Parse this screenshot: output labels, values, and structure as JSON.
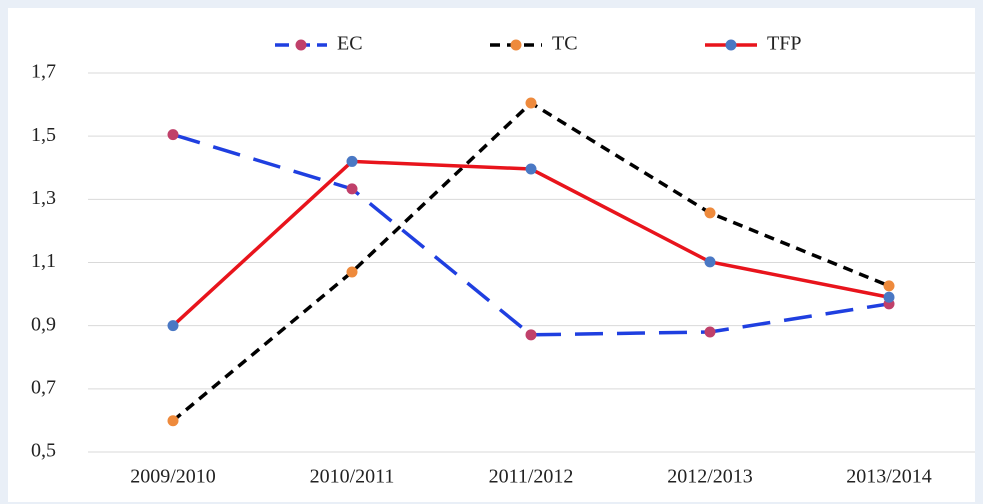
{
  "chart_data": {
    "type": "line",
    "categories": [
      "2009/2010",
      "2010/2011",
      "2011/2012",
      "2012/2013",
      "2013/2014"
    ],
    "series": [
      {
        "name": "EC",
        "color": "#1f3fe0",
        "marker_color": "#c0406a",
        "dash": "long",
        "values": [
          1.505,
          1.333,
          0.871,
          0.88,
          0.969
        ]
      },
      {
        "name": "TC",
        "color": "#000000",
        "marker_color": "#ee8a3c",
        "dash": "short",
        "values": [
          0.599,
          1.07,
          1.605,
          1.257,
          1.026
        ]
      },
      {
        "name": "TFP",
        "color": "#e8141c",
        "marker_color": "#4a78c4",
        "dash": "solid",
        "values": [
          0.9,
          1.42,
          1.396,
          1.102,
          0.99
        ]
      }
    ],
    "ylim": [
      0.5,
      1.7
    ],
    "yticks": [
      {
        "value": 0.5,
        "label": "0,5"
      },
      {
        "value": 0.7,
        "label": "0,7"
      },
      {
        "value": 0.9,
        "label": "0,9"
      },
      {
        "value": 1.1,
        "label": "1,1"
      },
      {
        "value": 1.3,
        "label": "1,3"
      },
      {
        "value": 1.5,
        "label": "1,5"
      },
      {
        "value": 1.7,
        "label": "1,7"
      }
    ],
    "grid": true,
    "legend": "top"
  }
}
